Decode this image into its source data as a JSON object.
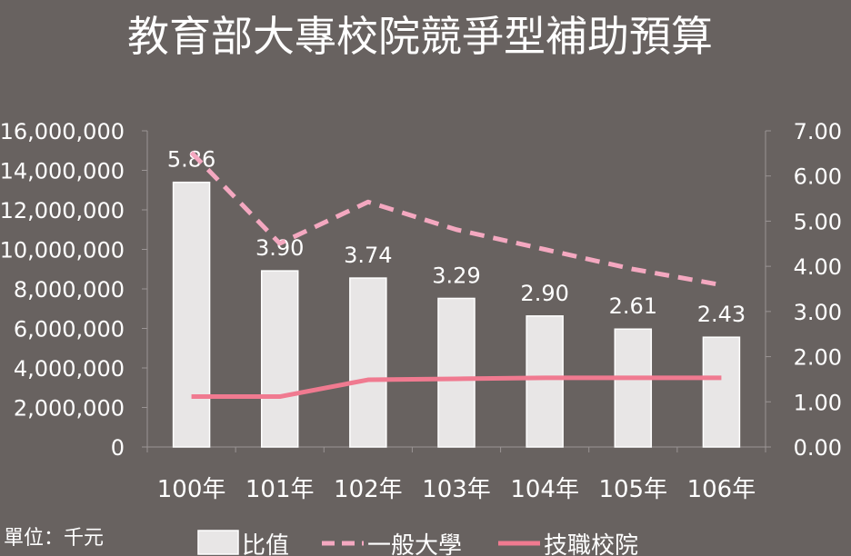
{
  "title": "教育部大專校院競爭型補助預算",
  "unit_note": "單位：千元",
  "colors": {
    "background": "#686260",
    "bar_fill": "#e8e6e6",
    "bar_stroke": "#ffffff",
    "dashed_line": "#f4a8c0",
    "solid_line": "#f07a90",
    "axis_text": "#ffffff",
    "axis_line": "#9a9494"
  },
  "chart_data": {
    "type": "bar",
    "categories": [
      "100年",
      "101年",
      "102年",
      "103年",
      "104年",
      "105年",
      "106年"
    ],
    "left_axis": {
      "min": 0,
      "max": 16000000,
      "ticks": [
        "0",
        "2,000,000",
        "4,000,000",
        "6,000,000",
        "8,000,000",
        "10,000,000",
        "12,000,000",
        "14,000,000",
        "16,000,000"
      ]
    },
    "right_axis": {
      "min": 0,
      "max": 7,
      "ticks": [
        "0.00",
        "1.00",
        "2.00",
        "3.00",
        "4.00",
        "5.00",
        "6.00",
        "7.00"
      ]
    },
    "series": [
      {
        "name": "比值",
        "kind": "bar",
        "axis": "right",
        "values": [
          5.86,
          3.9,
          3.74,
          3.29,
          2.9,
          2.61,
          2.43
        ],
        "labels": [
          "5.86",
          "3.90",
          "3.74",
          "3.29",
          "2.90",
          "2.61",
          "2.43"
        ]
      },
      {
        "name": "一般大學",
        "kind": "line-dashed",
        "axis": "left",
        "values": [
          14900000,
          10300000,
          12400000,
          11000000,
          10000000,
          9000000,
          8200000
        ]
      },
      {
        "name": "技職校院",
        "kind": "line-solid",
        "axis": "left",
        "values": [
          2550000,
          2550000,
          3400000,
          3450000,
          3500000,
          3500000,
          3500000
        ]
      }
    ],
    "legend": {
      "placement": "bottom",
      "labels": [
        "比值",
        "一般大學",
        "技職校院"
      ]
    },
    "grid": false
  }
}
